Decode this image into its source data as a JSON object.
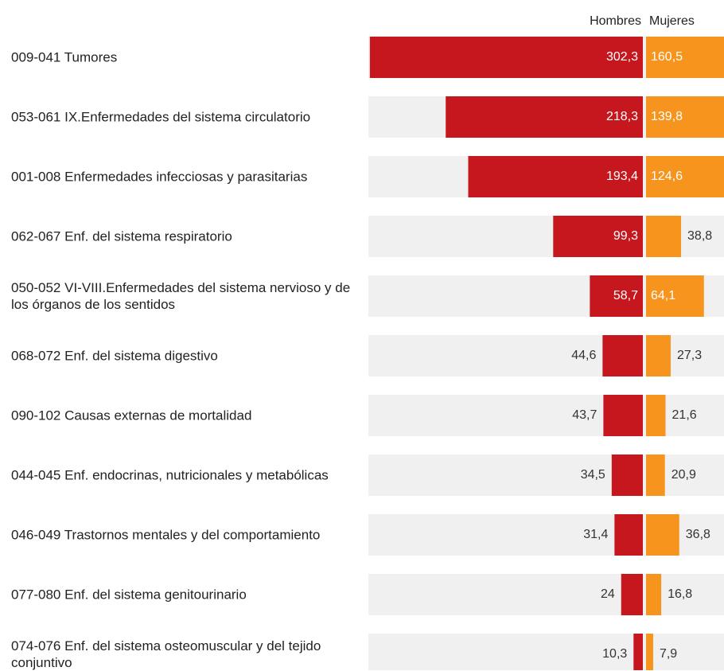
{
  "chart_data": {
    "type": "bar",
    "categories": [
      "009-041 Tumores",
      "053-061 IX.Enfermedades del sistema circulatorio",
      "001-008 Enfermedades infecciosas y parasitarias",
      "062-067 Enf. del sistema respiratorio",
      "050-052 VI-VIII.Enfermedades del sistema nervioso y de los órganos de los sentidos",
      "068-072 Enf. del sistema digestivo",
      "090-102 Causas externas de mortalidad",
      "044-045 Enf. endocrinas, nutricionales y metabólicas",
      "046-049 Trastornos mentales y del comportamiento",
      "077-080 Enf. del sistema genitourinario",
      "074-076 Enf. del sistema osteomuscular y del tejido conjuntivo"
    ],
    "series": [
      {
        "name": "Hombres",
        "color": "#c5171d",
        "values": [
          302.3,
          218.3,
          193.4,
          99.3,
          58.7,
          44.6,
          43.7,
          34.5,
          31.4,
          24,
          10.3
        ],
        "value_labels": [
          "302,3",
          "218,3",
          "193,4",
          "99,3",
          "58,7",
          "44,6",
          "43,7",
          "34,5",
          "31,4",
          "24",
          "10,3"
        ]
      },
      {
        "name": "Mujeres",
        "color": "#f7941d",
        "values": [
          160.5,
          139.8,
          124.6,
          38.8,
          64.1,
          27.3,
          21.6,
          20.9,
          36.8,
          16.8,
          7.9
        ],
        "value_labels": [
          "160,5",
          "139,8",
          "124,6",
          "38,8",
          "64,1",
          "27,3",
          "21,6",
          "20,9",
          "36,8",
          "16,8",
          "7,9"
        ]
      }
    ]
  }
}
